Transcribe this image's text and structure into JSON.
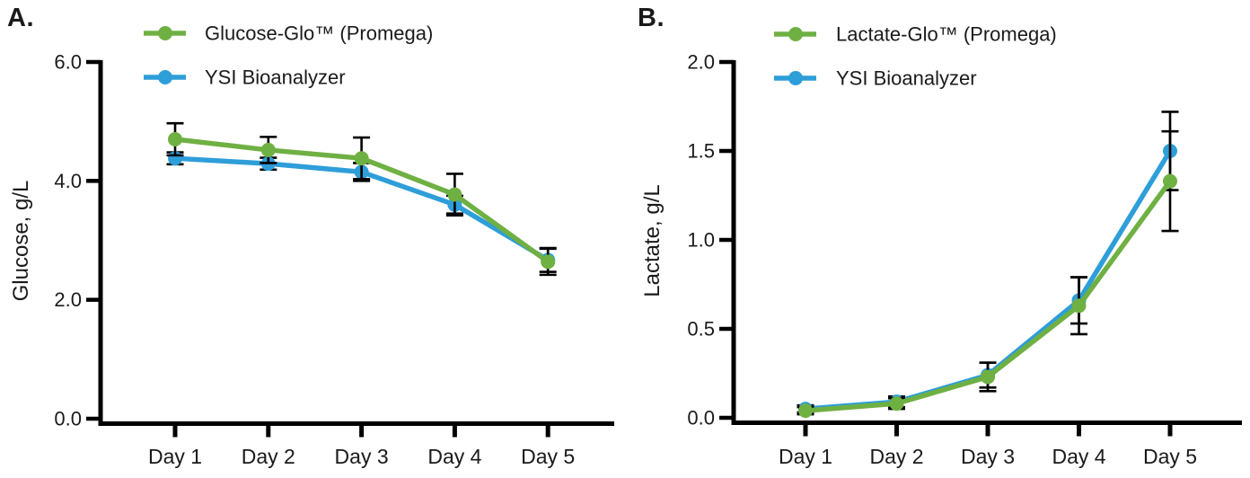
{
  "colors": {
    "green": "#6FB043",
    "blue": "#2E9ED9",
    "axis": "#000000",
    "text": "#1a1a1a"
  },
  "chart_data": [
    {
      "type": "line",
      "panel_label": "A.",
      "ylabel": "Glucose, g/L",
      "xlabel": "",
      "title": "",
      "categories": [
        "Day 1",
        "Day 2",
        "Day 3",
        "Day 4",
        "Day 5"
      ],
      "ylim": [
        0.0,
        6.0
      ],
      "yticks": [
        {
          "value": 0.0,
          "label": "0.0"
        },
        {
          "value": 2.0,
          "label": "2.0"
        },
        {
          "value": 4.0,
          "label": "4.0"
        },
        {
          "value": 6.0,
          "label": "6.0"
        }
      ],
      "grid": false,
      "legend_position": "top-left-inside",
      "series": [
        {
          "name": "YSI Bioanalyzer",
          "color_key": "blue",
          "values": [
            4.38,
            4.29,
            4.15,
            3.6,
            2.67
          ],
          "errors": [
            0.1,
            0.1,
            0.15,
            0.15,
            0.2
          ]
        },
        {
          "name": "Glucose-Glo™ (Promega)",
          "color_key": "green",
          "values": [
            4.7,
            4.52,
            4.38,
            3.77,
            2.64
          ],
          "errors": [
            0.27,
            0.22,
            0.35,
            0.35,
            0.22
          ]
        }
      ],
      "legend_order": [
        "Glucose-Glo™ (Promega)",
        "YSI Bioanalyzer"
      ]
    },
    {
      "type": "line",
      "panel_label": "B.",
      "ylabel": "Lactate, g/L",
      "xlabel": "",
      "title": "",
      "categories": [
        "Day 1",
        "Day 2",
        "Day 3",
        "Day 4",
        "Day 5"
      ],
      "ylim": [
        0.0,
        2.0
      ],
      "yticks": [
        {
          "value": 0.0,
          "label": "0.0"
        },
        {
          "value": 0.5,
          "label": "0.5"
        },
        {
          "value": 1.0,
          "label": "1.0"
        },
        {
          "value": 1.5,
          "label": "1.5"
        },
        {
          "value": 2.0,
          "label": "2.0"
        }
      ],
      "grid": false,
      "legend_position": "top-left-inside",
      "series": [
        {
          "name": "YSI Bioanalyzer",
          "color_key": "blue",
          "values": [
            0.05,
            0.09,
            0.24,
            0.66,
            1.5
          ],
          "errors": [
            0.02,
            0.03,
            0.07,
            0.13,
            0.22
          ]
        },
        {
          "name": "Lactate-Glo™ (Promega)",
          "color_key": "green",
          "values": [
            0.04,
            0.08,
            0.23,
            0.63,
            1.33
          ],
          "errors": [
            0.02,
            0.03,
            0.08,
            0.16,
            0.28
          ]
        }
      ],
      "legend_order": [
        "Lactate-Glo™ (Promega)",
        "YSI Bioanalyzer"
      ]
    }
  ]
}
